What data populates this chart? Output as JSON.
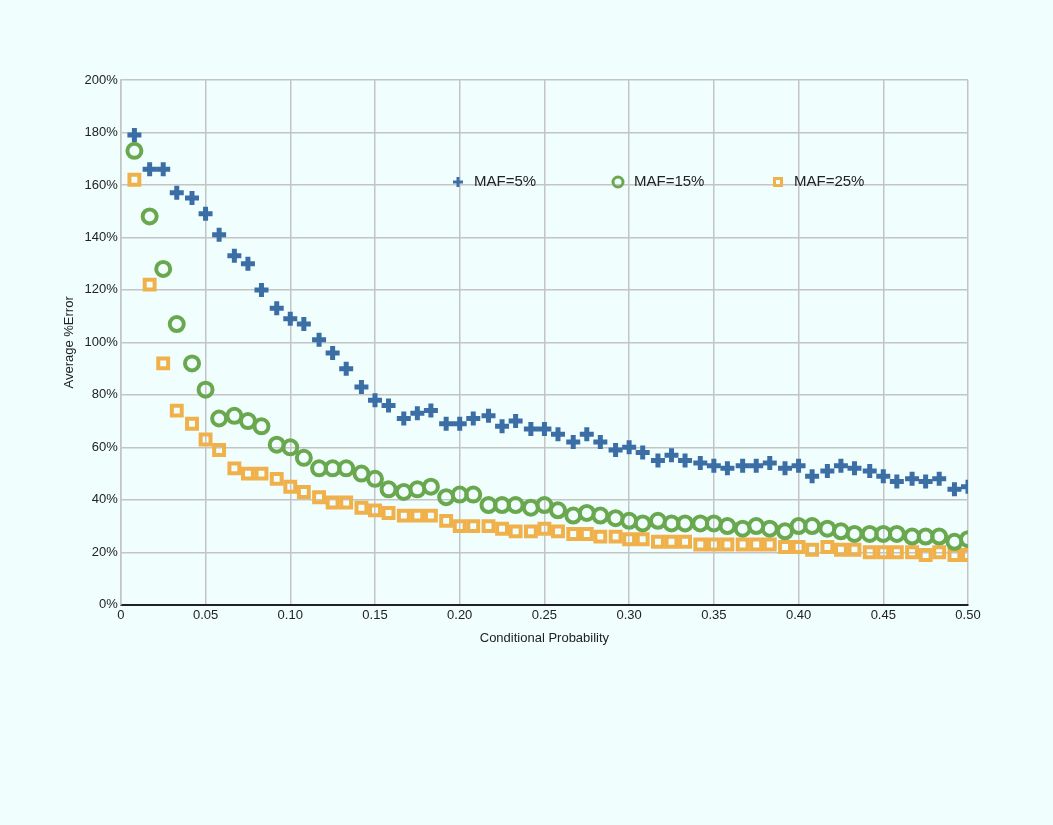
{
  "chart_data": {
    "type": "scatter",
    "xlabel": "Conditional Probability",
    "ylabel": "Average %Error",
    "x": [
      0.008,
      0.017,
      0.025,
      0.033,
      0.042,
      0.05,
      0.058,
      0.067,
      0.075,
      0.083,
      0.092,
      0.1,
      0.108,
      0.117,
      0.125,
      0.133,
      0.142,
      0.15,
      0.158,
      0.167,
      0.175,
      0.183,
      0.192,
      0.2,
      0.208,
      0.217,
      0.225,
      0.233,
      0.242,
      0.25,
      0.258,
      0.267,
      0.275,
      0.283,
      0.292,
      0.3,
      0.308,
      0.317,
      0.325,
      0.333,
      0.342,
      0.35,
      0.358,
      0.367,
      0.375,
      0.383,
      0.392,
      0.4,
      0.408,
      0.417,
      0.425,
      0.433,
      0.442,
      0.45,
      0.458,
      0.467,
      0.475,
      0.483,
      0.492,
      0.5
    ],
    "series": [
      {
        "name": "MAF=5%",
        "color": "#3a6ea5",
        "marker": "cross",
        "values": [
          179,
          166,
          166,
          157,
          155,
          149,
          141,
          133,
          130,
          120,
          113,
          109,
          107,
          101,
          96,
          90,
          83,
          78,
          76,
          71,
          73,
          74,
          69,
          69,
          71,
          72,
          68,
          70,
          67,
          67,
          65,
          62,
          65,
          62,
          59,
          60,
          58,
          55,
          57,
          55,
          54,
          53,
          52,
          53,
          53,
          54,
          52,
          53,
          49,
          51,
          53,
          52,
          51,
          49,
          47,
          48,
          47,
          48,
          44,
          45
        ]
      },
      {
        "name": "MAF=15%",
        "color": "#6aa84f",
        "marker": "circle",
        "values": [
          173,
          148,
          128,
          107,
          92,
          82,
          71,
          72,
          70,
          68,
          61,
          60,
          56,
          52,
          52,
          52,
          50,
          48,
          44,
          43,
          44,
          45,
          41,
          42,
          42,
          38,
          38,
          38,
          37,
          38,
          36,
          34,
          35,
          34,
          33,
          32,
          31,
          32,
          31,
          31,
          31,
          31,
          30,
          29,
          30,
          29,
          28,
          30,
          30,
          29,
          28,
          27,
          27,
          27,
          27,
          26,
          26,
          26,
          24,
          25
        ]
      },
      {
        "name": "MAF=25%",
        "color": "#f0b04a",
        "marker": "square",
        "values": [
          162,
          122,
          92,
          74,
          69,
          63,
          59,
          52,
          50,
          50,
          48,
          45,
          43,
          41,
          39,
          39,
          37,
          36,
          35,
          34,
          34,
          34,
          32,
          30,
          30,
          30,
          29,
          28,
          28,
          29,
          28,
          27,
          27,
          26,
          26,
          25,
          25,
          24,
          24,
          24,
          23,
          23,
          23,
          23,
          23,
          23,
          22,
          22,
          21,
          22,
          21,
          21,
          20,
          20,
          20,
          20,
          19,
          20,
          19,
          19
        ]
      }
    ],
    "xlim": [
      0,
      0.5
    ],
    "xticks": [
      {
        "value": 0,
        "label": "0"
      },
      {
        "value": 0.05,
        "label": "0.05"
      },
      {
        "value": 0.1,
        "label": "0.10"
      },
      {
        "value": 0.15,
        "label": "0.15"
      },
      {
        "value": 0.2,
        "label": "0.20"
      },
      {
        "value": 0.25,
        "label": "0.25"
      },
      {
        "value": 0.3,
        "label": "0.30"
      },
      {
        "value": 0.35,
        "label": "0.35"
      },
      {
        "value": 0.4,
        "label": "0.40"
      },
      {
        "value": 0.45,
        "label": "0.45"
      },
      {
        "value": 0.5,
        "label": "0.50"
      }
    ],
    "ylim": [
      0,
      200
    ],
    "yticks": [
      {
        "value": 0,
        "label": "0%"
      },
      {
        "value": 20,
        "label": "20%"
      },
      {
        "value": 40,
        "label": "40%"
      },
      {
        "value": 60,
        "label": "60%"
      },
      {
        "value": 80,
        "label": "80%"
      },
      {
        "value": 100,
        "label": "100%"
      },
      {
        "value": 120,
        "label": "120%"
      },
      {
        "value": 140,
        "label": "140%"
      },
      {
        "value": 160,
        "label": "160%"
      },
      {
        "value": 180,
        "label": "180%"
      },
      {
        "value": 200,
        "label": "200%"
      }
    ],
    "grid": true,
    "legend": "top right"
  }
}
